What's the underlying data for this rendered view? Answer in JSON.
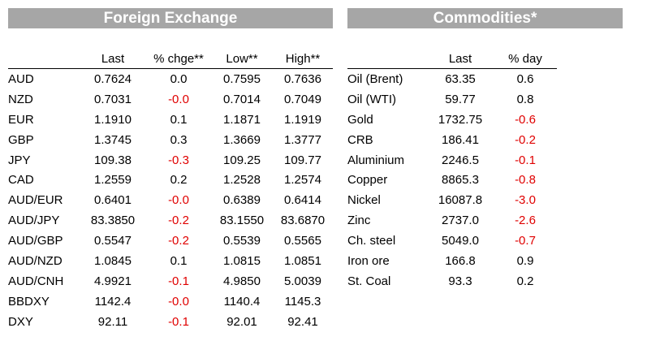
{
  "fx": {
    "title": "Foreign Exchange",
    "headers": [
      "",
      "Last",
      "% chge**",
      "Low**",
      "High**"
    ],
    "rows": [
      {
        "name": "AUD",
        "last": "0.7624",
        "chg": "0.0",
        "low": "0.7595",
        "high": "0.7636",
        "neg": false
      },
      {
        "name": "NZD",
        "last": "0.7031",
        "chg": "-0.0",
        "low": "0.7014",
        "high": "0.7049",
        "neg": true
      },
      {
        "name": "EUR",
        "last": "1.1910",
        "chg": "0.1",
        "low": "1.1871",
        "high": "1.1919",
        "neg": false
      },
      {
        "name": "GBP",
        "last": "1.3745",
        "chg": "0.3",
        "low": "1.3669",
        "high": "1.3777",
        "neg": false
      },
      {
        "name": "JPY",
        "last": "109.38",
        "chg": "-0.3",
        "low": "109.25",
        "high": "109.77",
        "neg": true
      },
      {
        "name": "CAD",
        "last": "1.2559",
        "chg": "0.2",
        "low": "1.2528",
        "high": "1.2574",
        "neg": false
      },
      {
        "name": "AUD/EUR",
        "last": "0.6401",
        "chg": "-0.0",
        "low": "0.6389",
        "high": "0.6414",
        "neg": true
      },
      {
        "name": "AUD/JPY",
        "last": "83.3850",
        "chg": "-0.2",
        "low": "83.1550",
        "high": "83.6870",
        "neg": true
      },
      {
        "name": "AUD/GBP",
        "last": "0.5547",
        "chg": "-0.2",
        "low": "0.5539",
        "high": "0.5565",
        "neg": true
      },
      {
        "name": "AUD/NZD",
        "last": "1.0845",
        "chg": "0.1",
        "low": "1.0815",
        "high": "1.0851",
        "neg": false
      },
      {
        "name": "AUD/CNH",
        "last": "4.9921",
        "chg": "-0.1",
        "low": "4.9850",
        "high": "5.0039",
        "neg": true
      },
      {
        "name": "BBDXY",
        "last": "1142.4",
        "chg": "-0.0",
        "low": "1140.4",
        "high": "1145.3",
        "neg": true
      },
      {
        "name": "DXY",
        "last": "92.11",
        "chg": "-0.1",
        "low": "92.01",
        "high": "92.41",
        "neg": true
      }
    ]
  },
  "commodities": {
    "title": "Commodities*",
    "headers": [
      "",
      "Last",
      "% day"
    ],
    "rows": [
      {
        "name": "Oil (Brent)",
        "last": "63.35",
        "chg": "0.6",
        "neg": false
      },
      {
        "name": "Oil (WTI)",
        "last": "59.77",
        "chg": "0.8",
        "neg": false
      },
      {
        "name": "Gold",
        "last": "1732.75",
        "chg": "-0.6",
        "neg": true
      },
      {
        "name": "CRB",
        "last": "186.41",
        "chg": "-0.2",
        "neg": true
      },
      {
        "name": "Aluminium",
        "last": "2246.5",
        "chg": "-0.1",
        "neg": true
      },
      {
        "name": "Copper",
        "last": "8865.3",
        "chg": "-0.8",
        "neg": true
      },
      {
        "name": "Nickel",
        "last": "16087.8",
        "chg": "-3.0",
        "neg": true
      },
      {
        "name": "Zinc",
        "last": "2737.0",
        "chg": "-2.6",
        "neg": true
      },
      {
        "name": "Ch. steel",
        "last": "5049.0",
        "chg": "-0.7",
        "neg": true
      },
      {
        "name": "Iron ore",
        "last": "166.8",
        "chg": "0.9",
        "neg": false
      },
      {
        "name": "St. Coal",
        "last": "93.3",
        "chg": "0.2",
        "neg": false
      }
    ]
  },
  "colors": {
    "banner": "#a6a6a6",
    "negative": "#e00000"
  }
}
